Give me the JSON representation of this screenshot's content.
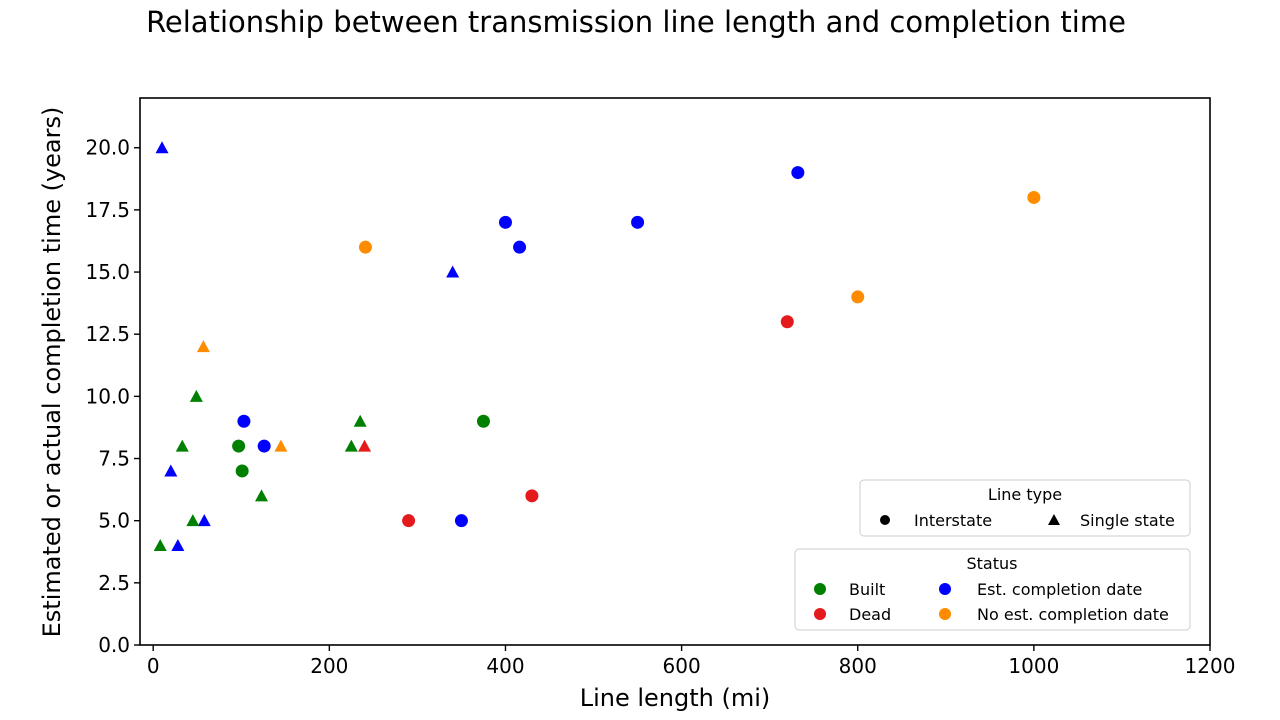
{
  "chart_data": {
    "type": "scatter",
    "title": "Relationship between transmission line length and completion time",
    "xlabel": "Line length (mi)",
    "ylabel": "Estimated or actual completion time (years)",
    "xlim": [
      -15,
      1200
    ],
    "ylim": [
      0,
      22
    ],
    "xticks": [
      "0",
      "200",
      "400",
      "600",
      "800",
      "1000",
      "1200"
    ],
    "yticks": [
      "0.0",
      "2.5",
      "5.0",
      "7.5",
      "10.0",
      "12.5",
      "15.0",
      "17.5",
      "20.0"
    ],
    "grid": false,
    "colors": {
      "Built": "#008000",
      "Dead": "#e41a1c",
      "Est. completion date": "#0000ff",
      "No est. completion date": "#ff8c00"
    },
    "legend_line_type": {
      "title": "Line type",
      "placement": "lower-right",
      "entries": [
        {
          "label": "Interstate",
          "marker": "circle"
        },
        {
          "label": "Single state",
          "marker": "triangle"
        }
      ]
    },
    "legend_status": {
      "title": "Status",
      "placement": "lower-right",
      "entries": [
        {
          "label": "Built",
          "status": "Built"
        },
        {
          "label": "Est. completion date",
          "status": "Est. completion date"
        },
        {
          "label": "Dead",
          "status": "Dead"
        },
        {
          "label": "No est. completion date",
          "status": "No est. completion date"
        }
      ]
    },
    "points": [
      {
        "x": 10,
        "y": 20,
        "status": "Est. completion date",
        "line_type": "Single state"
      },
      {
        "x": 20,
        "y": 7,
        "status": "Est. completion date",
        "line_type": "Single state"
      },
      {
        "x": 28,
        "y": 4,
        "status": "Est. completion date",
        "line_type": "Single state"
      },
      {
        "x": 58,
        "y": 5,
        "status": "Est. completion date",
        "line_type": "Single state"
      },
      {
        "x": 340,
        "y": 15,
        "status": "Est. completion date",
        "line_type": "Single state"
      },
      {
        "x": 8,
        "y": 4,
        "status": "Built",
        "line_type": "Single state"
      },
      {
        "x": 33,
        "y": 8,
        "status": "Built",
        "line_type": "Single state"
      },
      {
        "x": 45,
        "y": 5,
        "status": "Built",
        "line_type": "Single state"
      },
      {
        "x": 49,
        "y": 10,
        "status": "Built",
        "line_type": "Single state"
      },
      {
        "x": 123,
        "y": 6,
        "status": "Built",
        "line_type": "Single state"
      },
      {
        "x": 225,
        "y": 8,
        "status": "Built",
        "line_type": "Single state"
      },
      {
        "x": 235,
        "y": 9,
        "status": "Built",
        "line_type": "Single state"
      },
      {
        "x": 57,
        "y": 12,
        "status": "No est. completion date",
        "line_type": "Single state"
      },
      {
        "x": 145,
        "y": 8,
        "status": "No est. completion date",
        "line_type": "Single state"
      },
      {
        "x": 240,
        "y": 8,
        "status": "Dead",
        "line_type": "Single state"
      },
      {
        "x": 97,
        "y": 8,
        "status": "Built",
        "line_type": "Interstate"
      },
      {
        "x": 101,
        "y": 7,
        "status": "Built",
        "line_type": "Interstate"
      },
      {
        "x": 375,
        "y": 9,
        "status": "Built",
        "line_type": "Interstate"
      },
      {
        "x": 103,
        "y": 9,
        "status": "Est. completion date",
        "line_type": "Interstate"
      },
      {
        "x": 126,
        "y": 8,
        "status": "Est. completion date",
        "line_type": "Interstate"
      },
      {
        "x": 350,
        "y": 5,
        "status": "Est. completion date",
        "line_type": "Interstate"
      },
      {
        "x": 400,
        "y": 17,
        "status": "Est. completion date",
        "line_type": "Interstate"
      },
      {
        "x": 416,
        "y": 16,
        "status": "Est. completion date",
        "line_type": "Interstate"
      },
      {
        "x": 550,
        "y": 17,
        "status": "Est. completion date",
        "line_type": "Interstate"
      },
      {
        "x": 732,
        "y": 19,
        "status": "Est. completion date",
        "line_type": "Interstate"
      },
      {
        "x": 290,
        "y": 5,
        "status": "Dead",
        "line_type": "Interstate"
      },
      {
        "x": 430,
        "y": 6,
        "status": "Dead",
        "line_type": "Interstate"
      },
      {
        "x": 720,
        "y": 13,
        "status": "Dead",
        "line_type": "Interstate"
      },
      {
        "x": 241,
        "y": 16,
        "status": "No est. completion date",
        "line_type": "Interstate"
      },
      {
        "x": 800,
        "y": 14,
        "status": "No est. completion date",
        "line_type": "Interstate"
      },
      {
        "x": 1000,
        "y": 18,
        "status": "No est. completion date",
        "line_type": "Interstate"
      }
    ]
  }
}
